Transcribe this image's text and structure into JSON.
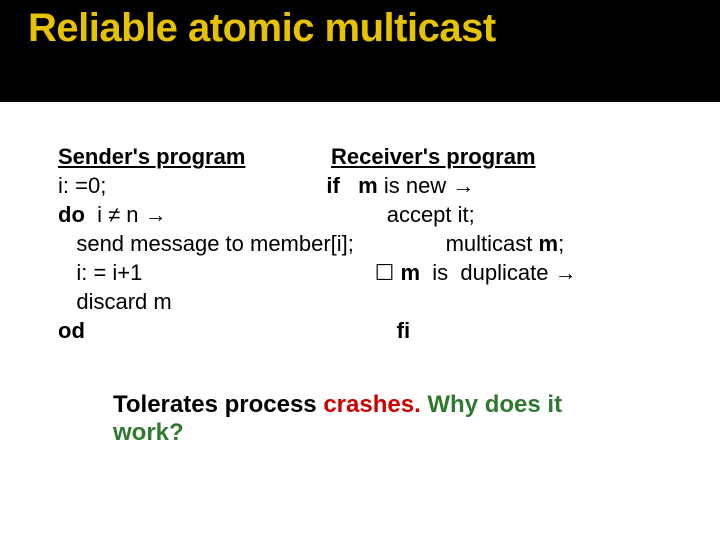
{
  "title": "Reliable atomic multicast",
  "heading_sender": "Sender's program",
  "heading_receiver": "Receiver's program",
  "line2_a": "i: =0;",
  "line2_b_if": "if",
  "line2_b_m": "m",
  "line2_b_rest": " is new ",
  "line3_do": "do",
  "line3_cond": "  i ≠ n ",
  "line3_accept": "accept it;",
  "line4_send": "   send message to member[i];",
  "line4_mcast_a": "multicast ",
  "line4_mcast_b": "m",
  "line4_mcast_c": ";",
  "line5_a": "   i: = i+1",
  "line5_box": " ☐ ",
  "line5_m": "m",
  "line5_rest": "  is  duplicate ",
  "line6": "   discard m",
  "line7_od": "od",
  "line7_fi": "fi",
  "footer_a": "Tolerates process ",
  "footer_b": "crashes.",
  "footer_c": " Why does it work?",
  "colors": {
    "title": "#e6c200",
    "header_bg": "#000000",
    "body_bg": "#ffffff",
    "text": "#000000",
    "crash_red": "#cc0000",
    "rest_green": "#2f7a2f"
  },
  "title_fontsize": 40,
  "body_fontsize": 22,
  "footer_fontsize": 24
}
